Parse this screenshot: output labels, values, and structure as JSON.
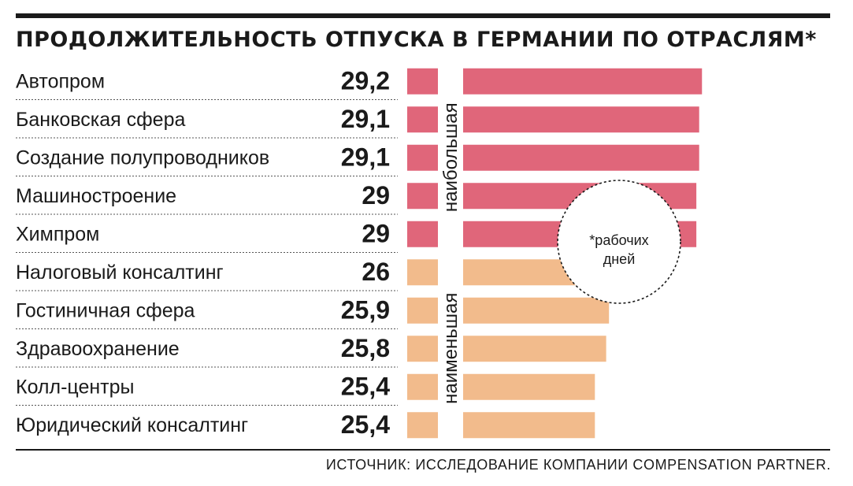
{
  "chart_data": {
    "type": "bar",
    "orientation": "horizontal",
    "title": "ПРОДОЛЖИТЕЛЬНОСТЬ ОТПУСКА В ГЕРМАНИИ ПО ОТРАСЛЯМ*",
    "categories": [
      "Автопром",
      "Банковская сфера",
      "Создание полупроводников",
      "Машиностроение",
      "Химпром",
      "Налоговый консалтинг",
      "Гостиничная сфера",
      "Здравоохранение",
      "Колл-центры",
      "Юридический консалтинг"
    ],
    "values": [
      29.2,
      29.1,
      29.1,
      29,
      29,
      26,
      25.9,
      25.8,
      25.4,
      25.4
    ],
    "value_labels": [
      "29,2",
      "29,1",
      "29,1",
      "29",
      "29",
      "26",
      "25,9",
      "25,8",
      "25,4",
      "25,4"
    ],
    "groups": [
      {
        "label": "наибольшая",
        "rows": [
          0,
          4
        ],
        "color": "#e0667a"
      },
      {
        "label": "наименьшая",
        "rows": [
          5,
          9
        ],
        "color": "#f2bb8c"
      }
    ],
    "annotation": "*рабочих дней",
    "annotation_lines": [
      "*рабочих",
      "дней"
    ],
    "source": "ИСТОЧНИК: ИССЛЕДОВАНИЕ КОМПАНИИ  COMPENSATION PARTNER.",
    "xlabel": "",
    "ylabel": ""
  }
}
